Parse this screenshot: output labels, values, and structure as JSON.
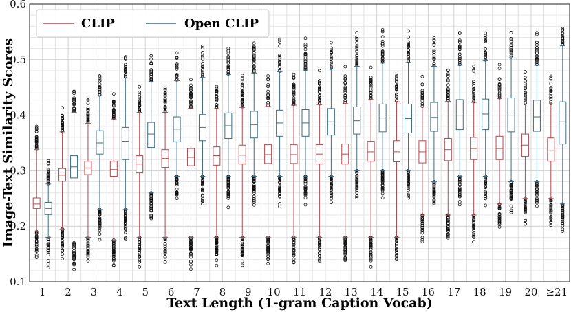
{
  "chart_data": {
    "type": "boxplot",
    "xlabel": "Text Length (1-gram Caption Vocab)",
    "ylabel": "Image-Text Similarity Scores",
    "ylim": [
      0.1,
      0.6
    ],
    "yticks": [
      "0.1",
      "0.2",
      "0.3",
      "0.4",
      "0.5",
      "0.6"
    ],
    "categories": [
      "1",
      "2",
      "3",
      "4",
      "5",
      "6",
      "7",
      "8",
      "9",
      "10",
      "11",
      "12",
      "13",
      "14",
      "15",
      "16",
      "17",
      "18",
      "19",
      "20",
      "≥21"
    ],
    "grid": true,
    "legend_position": "top-left",
    "series": [
      {
        "name": "CLIP",
        "color": "#b5484f",
        "boxes": [
          {
            "low": 0.19,
            "q1": 0.232,
            "median": 0.24,
            "q3": 0.251,
            "high": 0.338
          },
          {
            "low": 0.195,
            "q1": 0.281,
            "median": 0.292,
            "q3": 0.304,
            "high": 0.37
          },
          {
            "low": 0.18,
            "q1": 0.293,
            "median": 0.305,
            "q3": 0.317,
            "high": 0.385
          },
          {
            "low": 0.175,
            "q1": 0.29,
            "median": 0.302,
            "q3": 0.317,
            "high": 0.393
          },
          {
            "low": 0.18,
            "q1": 0.296,
            "median": 0.312,
            "q3": 0.327,
            "high": 0.405
          },
          {
            "low": 0.18,
            "q1": 0.306,
            "median": 0.322,
            "q3": 0.338,
            "high": 0.405
          },
          {
            "low": 0.18,
            "q1": 0.309,
            "median": 0.324,
            "q3": 0.34,
            "high": 0.412
          },
          {
            "low": 0.18,
            "q1": 0.31,
            "median": 0.327,
            "q3": 0.343,
            "high": 0.412
          },
          {
            "low": 0.18,
            "q1": 0.312,
            "median": 0.328,
            "q3": 0.346,
            "high": 0.414
          },
          {
            "low": 0.18,
            "q1": 0.313,
            "median": 0.329,
            "q3": 0.347,
            "high": 0.416
          },
          {
            "low": 0.18,
            "q1": 0.313,
            "median": 0.329,
            "q3": 0.347,
            "high": 0.418
          },
          {
            "low": 0.18,
            "q1": 0.312,
            "median": 0.33,
            "q3": 0.347,
            "high": 0.419
          },
          {
            "low": 0.18,
            "q1": 0.312,
            "median": 0.33,
            "q3": 0.348,
            "high": 0.421
          },
          {
            "low": 0.18,
            "q1": 0.317,
            "median": 0.334,
            "q3": 0.353,
            "high": 0.428
          },
          {
            "low": 0.18,
            "q1": 0.316,
            "median": 0.334,
            "q3": 0.354,
            "high": 0.424
          },
          {
            "low": 0.22,
            "q1": 0.314,
            "median": 0.334,
            "q3": 0.354,
            "high": 0.415
          },
          {
            "low": 0.22,
            "q1": 0.318,
            "median": 0.338,
            "q3": 0.358,
            "high": 0.425
          },
          {
            "low": 0.22,
            "q1": 0.32,
            "median": 0.34,
            "q3": 0.36,
            "high": 0.423
          },
          {
            "low": 0.24,
            "q1": 0.32,
            "median": 0.34,
            "q3": 0.362,
            "high": 0.43
          },
          {
            "low": 0.25,
            "q1": 0.326,
            "median": 0.346,
            "q3": 0.366,
            "high": 0.42
          },
          {
            "low": 0.25,
            "q1": 0.317,
            "median": 0.336,
            "q3": 0.359,
            "high": 0.42
          }
        ]
      },
      {
        "name": "Open CLIP",
        "color": "#3d6d85",
        "boxes": [
          {
            "low": 0.18,
            "q1": 0.221,
            "median": 0.232,
            "q3": 0.243,
            "high": 0.276
          },
          {
            "low": 0.17,
            "q1": 0.287,
            "median": 0.307,
            "q3": 0.327,
            "high": 0.405
          },
          {
            "low": 0.23,
            "q1": 0.33,
            "median": 0.35,
            "q3": 0.372,
            "high": 0.435
          },
          {
            "low": 0.23,
            "q1": 0.32,
            "median": 0.353,
            "q3": 0.378,
            "high": 0.467
          },
          {
            "low": 0.26,
            "q1": 0.342,
            "median": 0.366,
            "q3": 0.387,
            "high": 0.46
          },
          {
            "low": 0.29,
            "q1": 0.352,
            "median": 0.375,
            "q3": 0.397,
            "high": 0.462
          },
          {
            "low": 0.29,
            "q1": 0.354,
            "median": 0.378,
            "q3": 0.401,
            "high": 0.468
          },
          {
            "low": 0.29,
            "q1": 0.358,
            "median": 0.381,
            "q3": 0.404,
            "high": 0.473
          },
          {
            "low": 0.29,
            "q1": 0.359,
            "median": 0.383,
            "q3": 0.407,
            "high": 0.476
          },
          {
            "low": 0.29,
            "q1": 0.362,
            "median": 0.386,
            "q3": 0.409,
            "high": 0.478
          },
          {
            "low": 0.29,
            "q1": 0.362,
            "median": 0.386,
            "q3": 0.41,
            "high": 0.481
          },
          {
            "low": 0.29,
            "q1": 0.364,
            "median": 0.388,
            "q3": 0.412,
            "high": 0.483
          },
          {
            "low": 0.3,
            "q1": 0.366,
            "median": 0.39,
            "q3": 0.415,
            "high": 0.488
          },
          {
            "low": 0.3,
            "q1": 0.37,
            "median": 0.395,
            "q3": 0.42,
            "high": 0.494
          },
          {
            "low": 0.3,
            "q1": 0.368,
            "median": 0.394,
            "q3": 0.42,
            "high": 0.495
          },
          {
            "low": 0.28,
            "q1": 0.371,
            "median": 0.396,
            "q3": 0.423,
            "high": 0.488
          },
          {
            "low": 0.29,
            "q1": 0.374,
            "median": 0.4,
            "q3": 0.428,
            "high": 0.49
          },
          {
            "low": 0.29,
            "q1": 0.374,
            "median": 0.402,
            "q3": 0.429,
            "high": 0.498
          },
          {
            "low": 0.28,
            "q1": 0.37,
            "median": 0.4,
            "q3": 0.431,
            "high": 0.503
          },
          {
            "low": 0.28,
            "q1": 0.371,
            "median": 0.397,
            "q3": 0.427,
            "high": 0.49
          },
          {
            "low": 0.24,
            "q1": 0.348,
            "median": 0.388,
            "q3": 0.424,
            "high": 0.525
          }
        ]
      }
    ]
  }
}
